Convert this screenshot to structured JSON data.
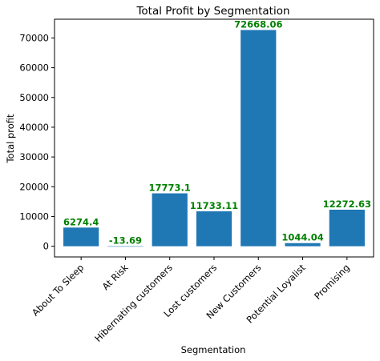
{
  "chart_data": {
    "type": "bar",
    "title": "Total Profit by Segmentation",
    "xlabel": "Segmentation",
    "ylabel": "Total profit",
    "categories": [
      "About To Sleep",
      "At Risk",
      "Hibernating customers",
      "Lost customers",
      "New Customers",
      "Potential Loyalist",
      "Promising"
    ],
    "values": [
      6274.4,
      -13.69,
      17773.1,
      11733.11,
      72668.06,
      1044.04,
      12272.63
    ],
    "data_labels": [
      "6274.4",
      "-13.69",
      "17773.1",
      "11733.11",
      "72668.06",
      "1044.04",
      "12272.63"
    ],
    "yticks": [
      0,
      10000,
      20000,
      30000,
      40000,
      50000,
      60000,
      70000
    ],
    "ylim": [
      -3600,
      76300
    ],
    "grid": false,
    "bar_color": "#1f77b4",
    "label_color": "#008000"
  }
}
